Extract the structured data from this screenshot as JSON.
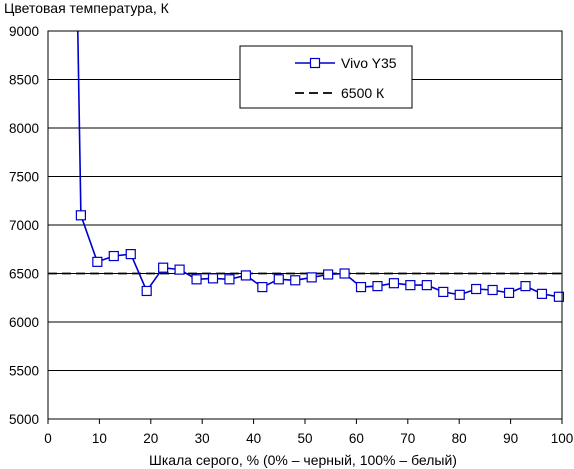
{
  "chart_data": {
    "type": "line",
    "title": "Цветовая температура, К",
    "xlabel": "Шкала серого, % (0% – черный, 100% – белый)",
    "ylabel": "",
    "xlim": [
      0,
      100
    ],
    "ylim": [
      5000,
      9000
    ],
    "xticks": [
      0,
      10,
      20,
      30,
      40,
      50,
      60,
      70,
      80,
      90,
      100
    ],
    "yticks": [
      5000,
      5500,
      6000,
      6500,
      7000,
      7500,
      8000,
      8500,
      9000
    ],
    "grid": "horizontal",
    "legend_position": "top-right",
    "series": [
      {
        "name": "Vivo Y35",
        "color": "#0000cc",
        "marker": "square",
        "x": [
          5.8,
          6.4,
          9.6,
          12.8,
          16.1,
          19.2,
          22.4,
          25.6,
          28.9,
          32.1,
          35.3,
          38.5,
          41.7,
          44.9,
          48.1,
          51.3,
          54.5,
          57.7,
          60.9,
          64.1,
          67.3,
          70.5,
          73.7,
          76.9,
          80.1,
          83.3,
          86.5,
          89.7,
          92.9,
          96.1,
          99.4
        ],
        "y": [
          9000,
          7100,
          6620,
          6680,
          6700,
          6320,
          6560,
          6540,
          6440,
          6450,
          6440,
          6480,
          6360,
          6440,
          6430,
          6460,
          6490,
          6500,
          6360,
          6370,
          6400,
          6380,
          6380,
          6310,
          6280,
          6340,
          6330,
          6300,
          6370,
          6290,
          6260
        ]
      },
      {
        "name": "6500 К",
        "color": "#000000",
        "style": "dashed",
        "x": [
          0,
          100
        ],
        "y": [
          6500,
          6500
        ]
      }
    ]
  }
}
